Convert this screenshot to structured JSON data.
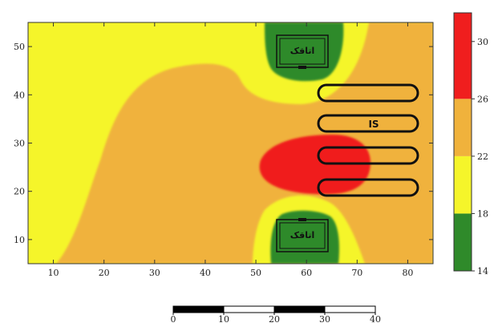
{
  "chart_data": {
    "type": "heatmap",
    "title": "",
    "xlabel": "",
    "ylabel": "",
    "xlim": [
      5,
      85
    ],
    "ylim": [
      5,
      55
    ],
    "x_ticks": [
      10,
      20,
      30,
      40,
      50,
      60,
      70,
      80
    ],
    "y_ticks": [
      10,
      20,
      30,
      40,
      50
    ],
    "colorbar": {
      "min": 14,
      "max": 32,
      "ticks": [
        14,
        18,
        22,
        26,
        30
      ],
      "bands": [
        {
          "from": 14,
          "to": 18,
          "color": "#2f8a2a"
        },
        {
          "from": 18,
          "to": 22,
          "color": "#f5f52a"
        },
        {
          "from": 22,
          "to": 26,
          "color": "#f0b23c"
        },
        {
          "from": 26,
          "to": 32,
          "color": "#f01e1e"
        }
      ]
    },
    "annotations": {
      "room_label": "اتاقک",
      "is_label": "IS"
    },
    "scale_bar": {
      "ticks": [
        "0",
        "10",
        "20",
        "30",
        "40"
      ]
    }
  }
}
